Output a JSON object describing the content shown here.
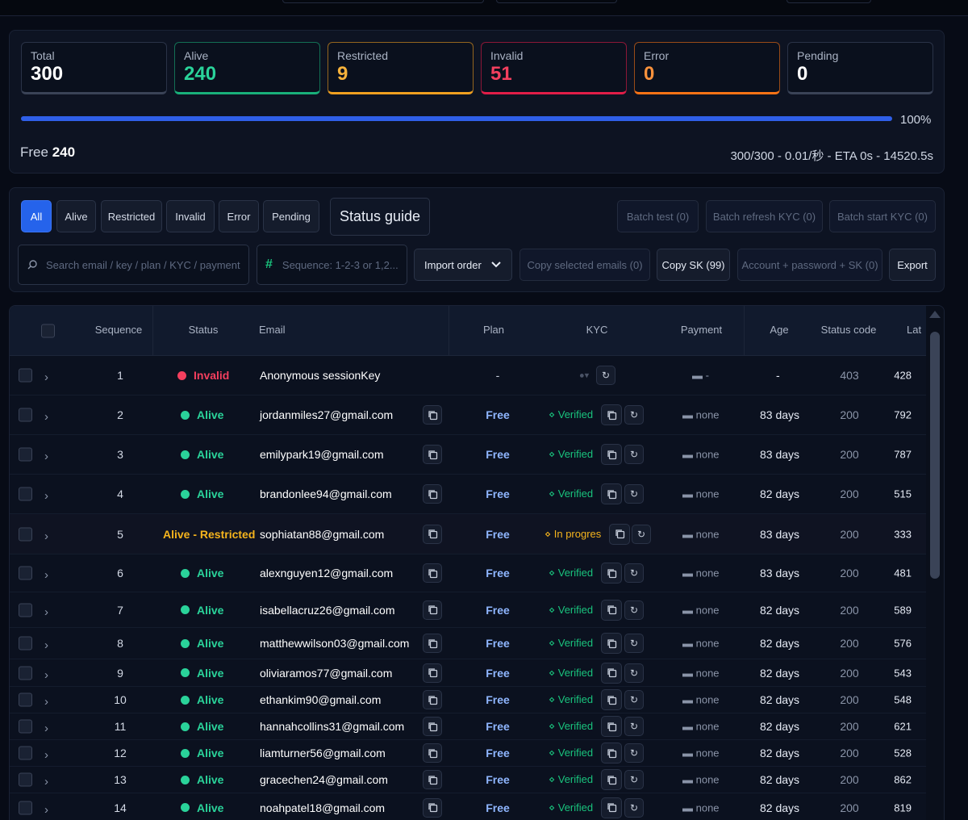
{
  "stats": [
    {
      "label": "Total",
      "value": "300",
      "color": "#ffffff",
      "border": "#3a4357"
    },
    {
      "label": "Alive",
      "value": "240",
      "color": "#2ad39a",
      "border": "#19b07a"
    },
    {
      "label": "Restricted",
      "value": "9",
      "color": "#f7b23b",
      "border": "#f0a020"
    },
    {
      "label": "Invalid",
      "value": "51",
      "color": "#f43f5e",
      "border": "#e11d48"
    },
    {
      "label": "Error",
      "value": "0",
      "color": "#fb923c",
      "border": "#f97316"
    },
    {
      "label": "Pending",
      "value": "0",
      "color": "#ffffff",
      "border": "#3a4357"
    }
  ],
  "progress": {
    "percent_label": "100%",
    "fraction": 1.0
  },
  "summary": {
    "free_label": "Free",
    "free_value": "240",
    "eta": "300/300 - 0.01/秒 - ETA 0s - 14520.5s"
  },
  "filters": [
    "All",
    "Alive",
    "Restricted",
    "Invalid",
    "Error",
    "Pending"
  ],
  "status_guide": "Status guide",
  "batch": [
    "Batch test (0)",
    "Batch refresh KYC (0)",
    "Batch start KYC (0)"
  ],
  "search": {
    "placeholder": "Search email / key / plan / KYC / payment"
  },
  "sequence": {
    "placeholder": "Sequence: 1-2-3 or 1,2..."
  },
  "actions": {
    "import_order": "Import order",
    "copy_selected": "Copy selected emails (0)",
    "copy_sk": "Copy SK (99)",
    "account_pw_sk": "Account + password + SK (0)",
    "export": "Export"
  },
  "columns": {
    "sequence": "Sequence",
    "status": "Status",
    "email": "Email",
    "plan": "Plan",
    "kyc": "KYC",
    "payment": "Payment",
    "age": "Age",
    "status_code": "Status code",
    "latency": "Lat"
  },
  "status_colors": {
    "Alive": "#2ad39a",
    "Invalid": "#f43f5e",
    "Restricted": "#f5b41d"
  },
  "rows": [
    {
      "seq": "1",
      "status": "Invalid",
      "email": "Anonymous sessionKey",
      "plan": "-",
      "kyc": "",
      "payment": "-",
      "age": "-",
      "code": "403",
      "lat": "428"
    },
    {
      "seq": "2",
      "status": "Alive",
      "email": "jordanmiles27@gmail.com",
      "plan": "Free",
      "kyc": "Verified",
      "payment": "none",
      "age": "83 days",
      "code": "200",
      "lat": "792"
    },
    {
      "seq": "3",
      "status": "Alive",
      "email": "emilypark19@gmail.com",
      "plan": "Free",
      "kyc": "Verified",
      "payment": "none",
      "age": "83 days",
      "code": "200",
      "lat": "787"
    },
    {
      "seq": "4",
      "status": "Alive",
      "email": "brandonlee94@gmail.com",
      "plan": "Free",
      "kyc": "Verified",
      "payment": "none",
      "age": "82 days",
      "code": "200",
      "lat": "515"
    },
    {
      "seq": "5",
      "status": "Alive - Restricted",
      "email": "sophiatan88@gmail.com",
      "plan": "Free",
      "kyc": "In progres",
      "payment": "none",
      "age": "83 days",
      "code": "200",
      "lat": "333"
    },
    {
      "seq": "6",
      "status": "Alive",
      "email": "alexnguyen12@gmail.com",
      "plan": "Free",
      "kyc": "Verified",
      "payment": "none",
      "age": "83 days",
      "code": "200",
      "lat": "481"
    },
    {
      "seq": "7",
      "status": "Alive",
      "email": "isabellacruz26@gmail.com",
      "plan": "Free",
      "kyc": "Verified",
      "payment": "none",
      "age": "82 days",
      "code": "200",
      "lat": "589"
    },
    {
      "seq": "8",
      "status": "Alive",
      "email": "matthewwilson03@gmail.com",
      "plan": "Free",
      "kyc": "Verified",
      "payment": "none",
      "age": "82 days",
      "code": "200",
      "lat": "576"
    },
    {
      "seq": "9",
      "status": "Alive",
      "email": "oliviaramos77@gmail.com",
      "plan": "Free",
      "kyc": "Verified",
      "payment": "none",
      "age": "82 days",
      "code": "200",
      "lat": "543"
    },
    {
      "seq": "10",
      "status": "Alive",
      "email": "ethankim90@gmail.com",
      "plan": "Free",
      "kyc": "Verified",
      "payment": "none",
      "age": "82 days",
      "code": "200",
      "lat": "548"
    },
    {
      "seq": "11",
      "status": "Alive",
      "email": "hannahcollins31@gmail.com",
      "plan": "Free",
      "kyc": "Verified",
      "payment": "none",
      "age": "82 days",
      "code": "200",
      "lat": "621"
    },
    {
      "seq": "12",
      "status": "Alive",
      "email": "liamturner56@gmail.com",
      "plan": "Free",
      "kyc": "Verified",
      "payment": "none",
      "age": "82 days",
      "code": "200",
      "lat": "528"
    },
    {
      "seq": "13",
      "status": "Alive",
      "email": "gracechen24@gmail.com",
      "plan": "Free",
      "kyc": "Verified",
      "payment": "none",
      "age": "82 days",
      "code": "200",
      "lat": "862"
    },
    {
      "seq": "14",
      "status": "Alive",
      "email": "noahpatel18@gmail.com",
      "plan": "Free",
      "kyc": "Verified",
      "payment": "none",
      "age": "82 days",
      "code": "200",
      "lat": "819"
    }
  ]
}
